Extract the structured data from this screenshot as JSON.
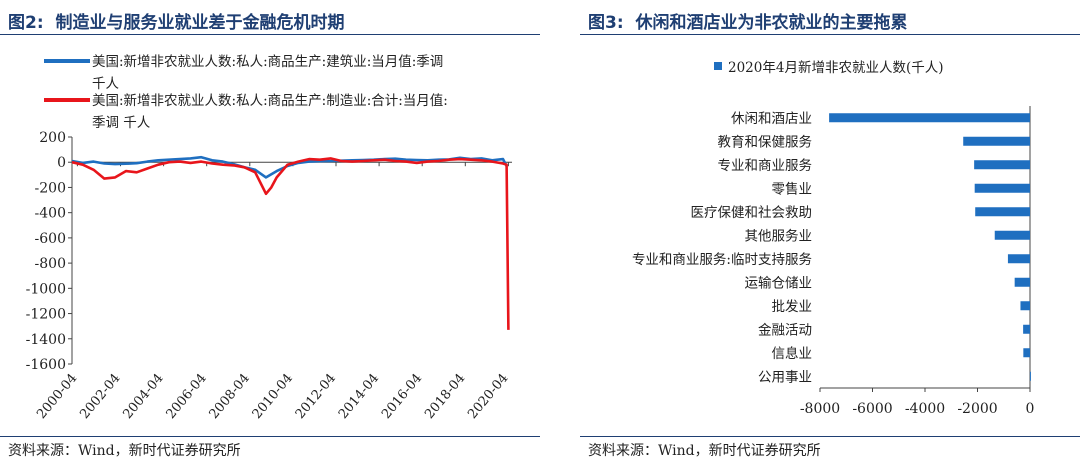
{
  "chart_data": [
    {
      "type": "line",
      "figure_label": "图2:",
      "title": "制造业与服务业就业差于金融危机时期",
      "source": "资料来源：Wind，新时代证券研究所",
      "legend_placement": "top-left",
      "ylim": [
        -1600,
        200
      ],
      "yticks": [
        200,
        0,
        -200,
        -400,
        -600,
        -800,
        -1000,
        -1200,
        -1400,
        -1600
      ],
      "xlim": [
        "2000-01",
        "2020-06"
      ],
      "xticks": [
        "2000-04",
        "2002-04",
        "2004-04",
        "2006-04",
        "2008-04",
        "2010-04",
        "2012-04",
        "2014-04",
        "2016-04",
        "2018-04",
        "2020-04"
      ],
      "series": [
        {
          "name": "美国:新增非农就业人数:私人:商品生产:建筑业:当月值:季调 千人",
          "color": "#1f6fc0",
          "points": [
            [
              "2000-01",
              10
            ],
            [
              "2000-07",
              -5
            ],
            [
              "2001-01",
              5
            ],
            [
              "2001-07",
              -10
            ],
            [
              "2002-01",
              -15
            ],
            [
              "2002-07",
              -12
            ],
            [
              "2003-01",
              -8
            ],
            [
              "2003-07",
              5
            ],
            [
              "2004-01",
              15
            ],
            [
              "2004-07",
              20
            ],
            [
              "2005-01",
              25
            ],
            [
              "2005-07",
              30
            ],
            [
              "2006-01",
              40
            ],
            [
              "2006-07",
              15
            ],
            [
              "2007-01",
              5
            ],
            [
              "2007-07",
              -15
            ],
            [
              "2008-01",
              -40
            ],
            [
              "2008-07",
              -60
            ],
            [
              "2009-01",
              -120
            ],
            [
              "2009-07",
              -70
            ],
            [
              "2010-01",
              -30
            ],
            [
              "2010-07",
              -5
            ],
            [
              "2011-01",
              5
            ],
            [
              "2011-07",
              8
            ],
            [
              "2012-01",
              10
            ],
            [
              "2012-07",
              12
            ],
            [
              "2013-01",
              15
            ],
            [
              "2013-07",
              18
            ],
            [
              "2014-01",
              20
            ],
            [
              "2014-07",
              25
            ],
            [
              "2015-01",
              28
            ],
            [
              "2015-07",
              20
            ],
            [
              "2016-01",
              18
            ],
            [
              "2016-07",
              15
            ],
            [
              "2017-01",
              20
            ],
            [
              "2017-07",
              22
            ],
            [
              "2018-01",
              35
            ],
            [
              "2018-07",
              25
            ],
            [
              "2019-01",
              30
            ],
            [
              "2019-07",
              15
            ],
            [
              "2020-01",
              25
            ],
            [
              "2020-03",
              -30
            ]
          ]
        },
        {
          "name": "美国:新增非农就业人数:私人:商品生产:制造业:合计:当月值:季调 千人",
          "color": "#e8151b",
          "points": [
            [
              "2000-01",
              0
            ],
            [
              "2000-07",
              -20
            ],
            [
              "2001-01",
              -60
            ],
            [
              "2001-07",
              -130
            ],
            [
              "2002-01",
              -120
            ],
            [
              "2002-07",
              -70
            ],
            [
              "2003-01",
              -80
            ],
            [
              "2003-07",
              -50
            ],
            [
              "2004-01",
              -20
            ],
            [
              "2004-07",
              0
            ],
            [
              "2005-01",
              5
            ],
            [
              "2005-07",
              -5
            ],
            [
              "2006-01",
              5
            ],
            [
              "2006-07",
              -10
            ],
            [
              "2007-01",
              -20
            ],
            [
              "2007-07",
              -25
            ],
            [
              "2008-01",
              -40
            ],
            [
              "2008-07",
              -80
            ],
            [
              "2009-01",
              -250
            ],
            [
              "2009-04",
              -200
            ],
            [
              "2009-07",
              -120
            ],
            [
              "2010-01",
              -20
            ],
            [
              "2010-07",
              5
            ],
            [
              "2011-01",
              25
            ],
            [
              "2011-07",
              20
            ],
            [
              "2012-01",
              30
            ],
            [
              "2012-07",
              10
            ],
            [
              "2013-01",
              5
            ],
            [
              "2013-07",
              10
            ],
            [
              "2014-01",
              15
            ],
            [
              "2014-07",
              20
            ],
            [
              "2015-01",
              10
            ],
            [
              "2015-07",
              5
            ],
            [
              "2016-01",
              -5
            ],
            [
              "2016-07",
              5
            ],
            [
              "2017-01",
              10
            ],
            [
              "2017-07",
              20
            ],
            [
              "2018-01",
              25
            ],
            [
              "2018-07",
              20
            ],
            [
              "2019-01",
              15
            ],
            [
              "2019-07",
              5
            ],
            [
              "2020-01",
              -10
            ],
            [
              "2020-03",
              -20
            ],
            [
              "2020-04",
              -1330
            ]
          ]
        }
      ]
    },
    {
      "type": "bar",
      "orientation": "horizontal",
      "figure_label": "图3:",
      "title": "休闲和酒店业为非农就业的主要拖累",
      "source": "资料来源：Wind，新时代证券研究所",
      "legend_placement": "top",
      "series_name": "2020年4月新增非农就业人数(千人)",
      "color": "#1f6fc0",
      "xlim": [
        -8000,
        0
      ],
      "xticks": [
        -8000,
        -6000,
        -4000,
        -2000,
        0
      ],
      "categories": [
        "休闲和酒店业",
        "教育和保健服务",
        "专业和商业服务",
        "零售业",
        "医疗保健和社会救助",
        "其他服务业",
        "专业和商业服务:临时支持服务",
        "运输仓储业",
        "批发业",
        "金融活动",
        "信息业",
        "公用事业"
      ],
      "values": [
        -7653,
        -2544,
        -2128,
        -2107,
        -2087,
        -1343,
        -841,
        -584,
        -363,
        -262,
        -254,
        -3
      ]
    }
  ]
}
